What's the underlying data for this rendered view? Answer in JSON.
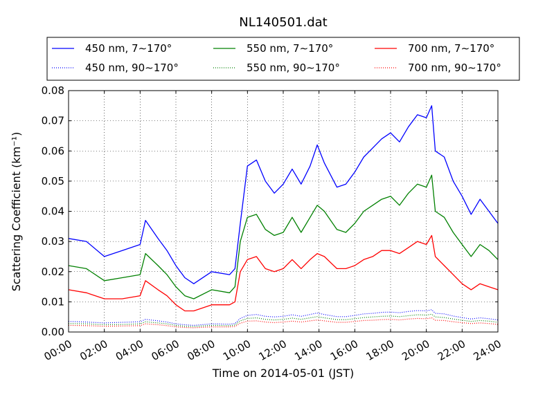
{
  "chart_data": {
    "type": "line",
    "title": "NL140501.dat",
    "xlabel": "Time on 2014-05-01 (JST)",
    "ylabel": "Scattering Coefficient (km⁻¹)",
    "xlim": [
      0,
      24
    ],
    "ylim": [
      0,
      0.08
    ],
    "x_ticks": [
      "00:00",
      "02:00",
      "04:00",
      "06:00",
      "08:00",
      "10:00",
      "12:00",
      "14:00",
      "16:00",
      "18:00",
      "20:00",
      "22:00",
      "24:00"
    ],
    "y_ticks": [
      "0.00",
      "0.01",
      "0.02",
      "0.03",
      "0.04",
      "0.05",
      "0.06",
      "0.07",
      "0.08"
    ],
    "grid": true,
    "legend_position": "top",
    "x": [
      0,
      1,
      2,
      3,
      4,
      4.3,
      5,
      5.5,
      6,
      6.5,
      7,
      8,
      9,
      9.3,
      9.6,
      10,
      10.5,
      11,
      11.5,
      12,
      12.5,
      13,
      13.5,
      13.9,
      14.3,
      15,
      15.5,
      16,
      16.5,
      17,
      17.5,
      18,
      18.5,
      19,
      19.5,
      20,
      20.3,
      20.5,
      21,
      21.5,
      22,
      22.5,
      23,
      23.5,
      24
    ],
    "series": [
      {
        "name": "450 nm, 7∼170°",
        "color": "#0000ff",
        "style": "solid",
        "values": [
          0.031,
          0.03,
          0.025,
          0.027,
          0.029,
          0.037,
          0.031,
          0.027,
          0.022,
          0.018,
          0.016,
          0.02,
          0.019,
          0.021,
          0.036,
          0.055,
          0.057,
          0.05,
          0.046,
          0.049,
          0.054,
          0.049,
          0.055,
          0.062,
          0.056,
          0.048,
          0.049,
          0.053,
          0.058,
          0.061,
          0.064,
          0.066,
          0.063,
          0.068,
          0.072,
          0.071,
          0.075,
          0.06,
          0.058,
          0.05,
          0.045,
          0.039,
          0.044,
          0.04,
          0.036
        ]
      },
      {
        "name": "550 nm, 7∼170°",
        "color": "#008000",
        "style": "solid",
        "values": [
          0.022,
          0.021,
          0.017,
          0.018,
          0.019,
          0.026,
          0.022,
          0.019,
          0.015,
          0.012,
          0.011,
          0.014,
          0.013,
          0.015,
          0.03,
          0.038,
          0.039,
          0.034,
          0.032,
          0.033,
          0.038,
          0.033,
          0.038,
          0.042,
          0.04,
          0.034,
          0.033,
          0.036,
          0.04,
          0.042,
          0.044,
          0.045,
          0.042,
          0.046,
          0.049,
          0.048,
          0.052,
          0.04,
          0.038,
          0.033,
          0.029,
          0.025,
          0.029,
          0.027,
          0.024
        ]
      },
      {
        "name": "700 nm, 7∼170°",
        "color": "#ff0000",
        "style": "solid",
        "values": [
          0.014,
          0.013,
          0.011,
          0.011,
          0.012,
          0.017,
          0.014,
          0.012,
          0.009,
          0.007,
          0.007,
          0.009,
          0.009,
          0.01,
          0.02,
          0.024,
          0.025,
          0.021,
          0.02,
          0.021,
          0.024,
          0.021,
          0.024,
          0.026,
          0.025,
          0.021,
          0.021,
          0.022,
          0.024,
          0.025,
          0.027,
          0.027,
          0.026,
          0.028,
          0.03,
          0.029,
          0.032,
          0.025,
          0.022,
          0.019,
          0.016,
          0.014,
          0.016,
          0.015,
          0.014
        ]
      },
      {
        "name": "450 nm, 90∼170°",
        "color": "#0000ff",
        "style": "dotted",
        "values": [
          0.0035,
          0.0033,
          0.003,
          0.0032,
          0.0034,
          0.0042,
          0.0037,
          0.0033,
          0.0027,
          0.0024,
          0.0022,
          0.0027,
          0.0026,
          0.0028,
          0.0045,
          0.0055,
          0.0058,
          0.0052,
          0.005,
          0.0052,
          0.0057,
          0.0052,
          0.0058,
          0.0063,
          0.0058,
          0.0051,
          0.0051,
          0.0055,
          0.006,
          0.0062,
          0.0065,
          0.0066,
          0.0064,
          0.0068,
          0.0071,
          0.007,
          0.0074,
          0.0062,
          0.006,
          0.0053,
          0.0048,
          0.0043,
          0.0047,
          0.0044,
          0.004
        ]
      },
      {
        "name": "550 nm, 90∼170°",
        "color": "#008000",
        "style": "dotted",
        "values": [
          0.0028,
          0.0027,
          0.0024,
          0.0025,
          0.0027,
          0.0034,
          0.003,
          0.0027,
          0.0022,
          0.0019,
          0.0018,
          0.0022,
          0.0021,
          0.0023,
          0.0037,
          0.0045,
          0.0047,
          0.0042,
          0.004,
          0.0042,
          0.0046,
          0.0042,
          0.0047,
          0.0051,
          0.0047,
          0.0041,
          0.0041,
          0.0044,
          0.0048,
          0.005,
          0.0052,
          0.0053,
          0.0051,
          0.0054,
          0.0057,
          0.0056,
          0.0059,
          0.005,
          0.0048,
          0.0043,
          0.0039,
          0.0035,
          0.0038,
          0.0036,
          0.0032
        ]
      },
      {
        "name": "700 nm, 90∼170°",
        "color": "#ff0000",
        "style": "dotted",
        "values": [
          0.0022,
          0.0021,
          0.0019,
          0.002,
          0.0021,
          0.0027,
          0.0024,
          0.0021,
          0.0017,
          0.0015,
          0.0014,
          0.0017,
          0.0017,
          0.0018,
          0.0029,
          0.0036,
          0.0037,
          0.0033,
          0.0031,
          0.0033,
          0.0036,
          0.0033,
          0.0037,
          0.004,
          0.0037,
          0.0032,
          0.0032,
          0.0035,
          0.0038,
          0.0039,
          0.0041,
          0.0042,
          0.004,
          0.0043,
          0.0045,
          0.0044,
          0.0047,
          0.0039,
          0.0038,
          0.0034,
          0.0031,
          0.0028,
          0.003,
          0.0028,
          0.0025
        ]
      }
    ]
  }
}
